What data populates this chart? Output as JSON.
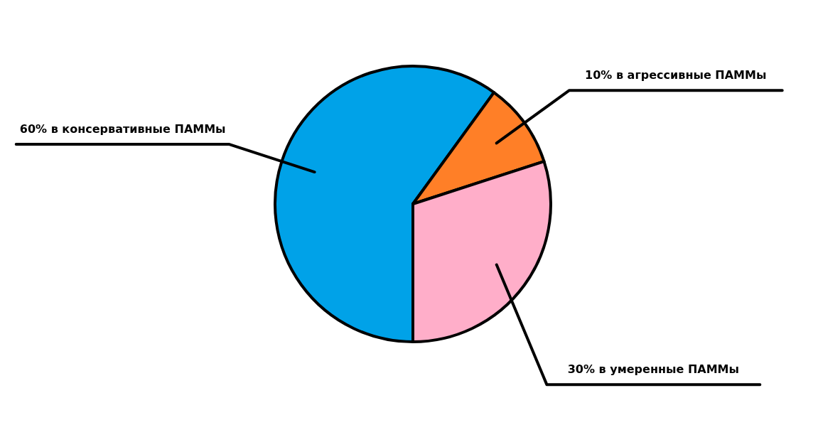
{
  "chart_data": {
    "type": "pie",
    "categories": [
      "в консервативные ПАММы",
      "в агрессивные ПАММы",
      "в умеренные ПАММы"
    ],
    "values": [
      60,
      10,
      30
    ],
    "colors": [
      "#00a2e8",
      "#ff7f27",
      "#ffaec9"
    ],
    "value_labels": [
      "60%",
      "10%",
      "30%"
    ]
  }
}
